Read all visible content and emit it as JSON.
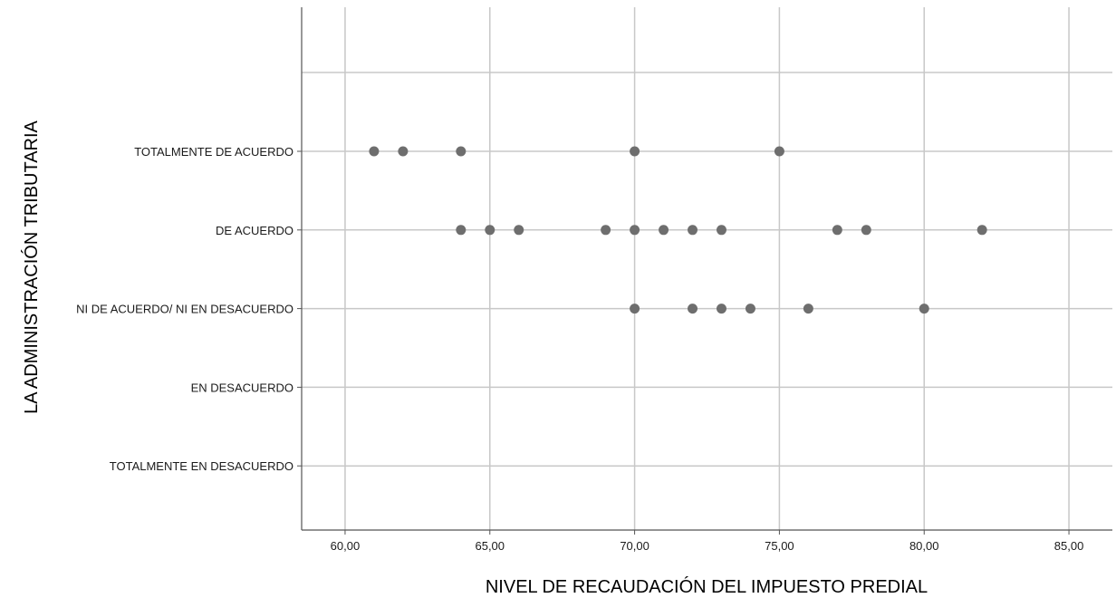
{
  "chart_data": {
    "type": "scatter",
    "title": "",
    "xlabel": "NIVEL DE RECAUDACIÓN DEL IMPUESTO PREDIAL",
    "ylabel": "LA ADMINISTRACIÓN TRIBUTARIA",
    "xlim": [
      58.5,
      86.5
    ],
    "xticks": [
      60,
      65,
      70,
      75,
      80,
      85
    ],
    "xtick_labels": [
      "60,00",
      "65,00",
      "70,00",
      "75,00",
      "80,00",
      "85,00"
    ],
    "categories": [
      "TOTALMENTE EN DESACUERDO",
      "EN DESACUERDO",
      "NI DE ACUERDO/ NI EN DESACUERDO",
      "DE ACUERDO",
      "TOTALMENTE DE ACUERDO"
    ],
    "grid": true,
    "point_color": "#6e6e6e",
    "grid_color": "#c8c8c8",
    "points": [
      {
        "category": "TOTALMENTE DE ACUERDO",
        "x": 61
      },
      {
        "category": "TOTALMENTE DE ACUERDO",
        "x": 62
      },
      {
        "category": "TOTALMENTE DE ACUERDO",
        "x": 64
      },
      {
        "category": "TOTALMENTE DE ACUERDO",
        "x": 70
      },
      {
        "category": "TOTALMENTE DE ACUERDO",
        "x": 75
      },
      {
        "category": "DE ACUERDO",
        "x": 64
      },
      {
        "category": "DE ACUERDO",
        "x": 65
      },
      {
        "category": "DE ACUERDO",
        "x": 66
      },
      {
        "category": "DE ACUERDO",
        "x": 69
      },
      {
        "category": "DE ACUERDO",
        "x": 70
      },
      {
        "category": "DE ACUERDO",
        "x": 71
      },
      {
        "category": "DE ACUERDO",
        "x": 72
      },
      {
        "category": "DE ACUERDO",
        "x": 73
      },
      {
        "category": "DE ACUERDO",
        "x": 77
      },
      {
        "category": "DE ACUERDO",
        "x": 78
      },
      {
        "category": "DE ACUERDO",
        "x": 82
      },
      {
        "category": "NI DE ACUERDO/ NI EN DESACUERDO",
        "x": 70
      },
      {
        "category": "NI DE ACUERDO/ NI EN DESACUERDO",
        "x": 72
      },
      {
        "category": "NI DE ACUERDO/ NI EN DESACUERDO",
        "x": 73
      },
      {
        "category": "NI DE ACUERDO/ NI EN DESACUERDO",
        "x": 74
      },
      {
        "category": "NI DE ACUERDO/ NI EN DESACUERDO",
        "x": 76
      },
      {
        "category": "NI DE ACUERDO/ NI EN DESACUERDO",
        "x": 80
      }
    ]
  }
}
